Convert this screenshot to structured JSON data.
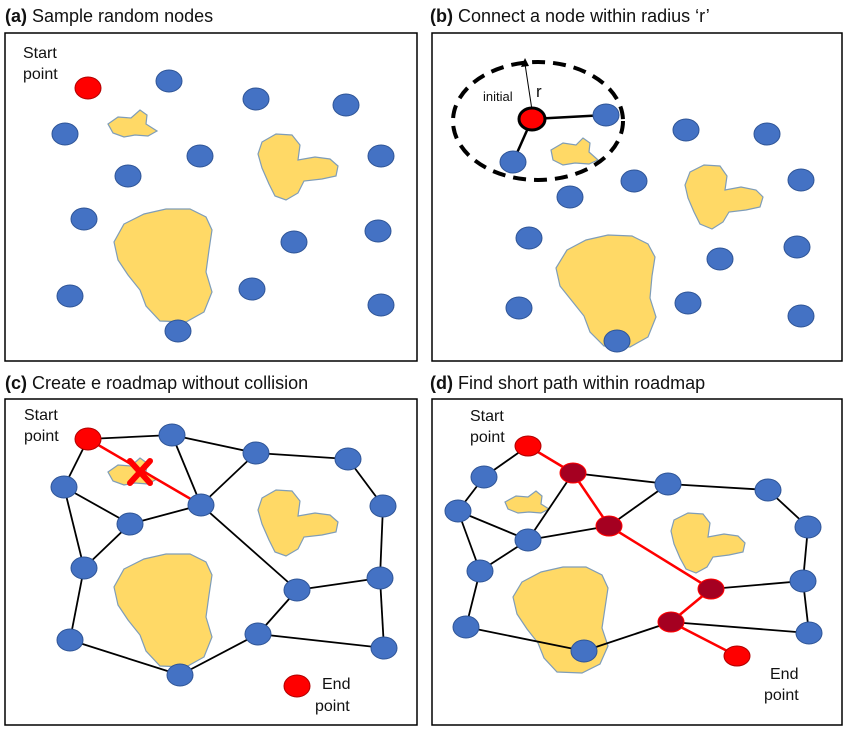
{
  "panels": [
    {
      "tag": "(a)",
      "title": "Sample random nodes"
    },
    {
      "tag": "(b)",
      "title": "Connect a node within radius ‘r’"
    },
    {
      "tag": "(c)",
      "title": "Create e roadmap without collision"
    },
    {
      "tag": "(d)",
      "title": "Find short path within roadmap"
    }
  ],
  "labels": {
    "start": [
      "Start",
      "point"
    ],
    "end": [
      "End",
      "point"
    ],
    "initial": "initial",
    "radius": "r"
  },
  "colors": {
    "node": "#4472C4",
    "node_stroke": "#2F5597",
    "start": "#FF0000",
    "path_node": "#A50021",
    "obstacle": "#FFD966",
    "obstacle_stroke": "#7F9DB8",
    "edge": "#000000",
    "path_edge": "#FF0000",
    "collision_mark": "#FF0000"
  }
}
